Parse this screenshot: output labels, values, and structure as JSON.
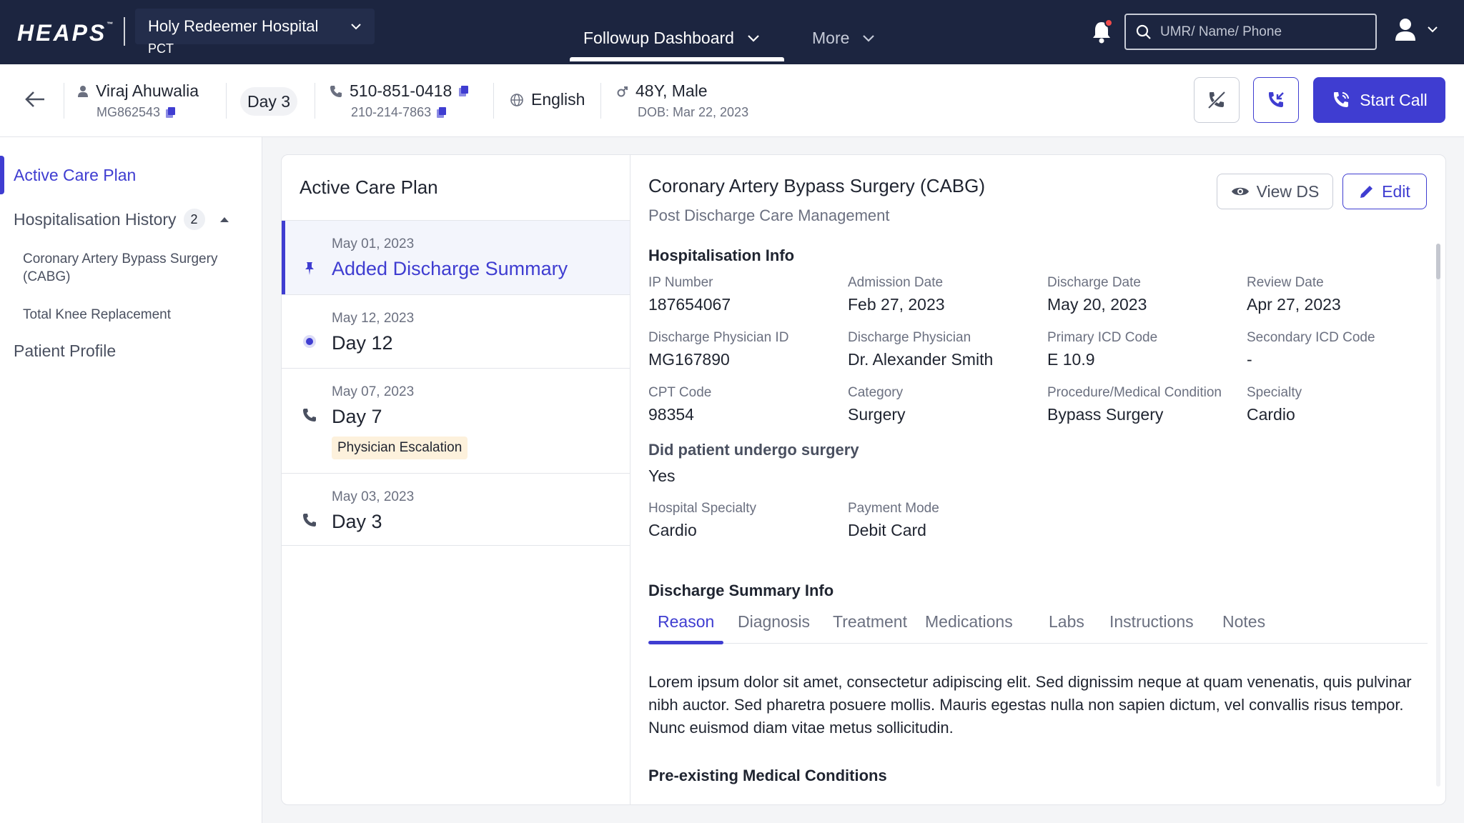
{
  "app": {
    "logo": "HEAPS",
    "logo_tm": "™"
  },
  "header": {
    "hospital_name": "Holy Redeemer Hospital",
    "hospital_sub": "PCT",
    "nav_tabs": [
      {
        "label": "Followup Dashboard",
        "active": true
      },
      {
        "label": "More",
        "active": false
      }
    ],
    "search_placeholder": "UMR/ Name/ Phone"
  },
  "patient": {
    "name": "Viraj Ahuwalia",
    "mrn": "MG862543",
    "day": "Day 3",
    "phone_primary": "510-851-0418",
    "phone_secondary": "210-214-7863",
    "language": "English",
    "age_gender": "48Y, Male",
    "dob": "DOB: Mar 22, 2023",
    "start_call_label": "Start Call"
  },
  "sidebar": {
    "active_care_plan": "Active Care Plan",
    "hospitalisation_history": "Hospitalisation History",
    "history_count": "2",
    "history_items": [
      "Coronary Artery Bypass Surgery (CABG)",
      "Total Knee Replacement"
    ],
    "patient_profile": "Patient Profile"
  },
  "timeline": {
    "title": "Active Care Plan",
    "items": [
      {
        "date": "May 01, 2023",
        "label": "Added Discharge Summary",
        "icon": "pin-icon"
      },
      {
        "date": "May 12, 2023",
        "label": "Day 12",
        "icon": "radio-dot-icon"
      },
      {
        "date": "May 07, 2023",
        "label": "Day 7",
        "icon": "phone-icon",
        "tag": "Physician Escalation"
      },
      {
        "date": "May 03, 2023",
        "label": "Day 3",
        "icon": "phone-icon"
      }
    ]
  },
  "detail": {
    "title": "Coronary Artery Bypass Surgery (CABG)",
    "subtitle": "Post Discharge Care Management",
    "view_ds_label": "View DS",
    "edit_label": "Edit",
    "hosp_info_title": "Hospitalisation Info",
    "fields": [
      {
        "label": "IP Number",
        "value": "187654067"
      },
      {
        "label": "Admission Date",
        "value": "Feb 27, 2023"
      },
      {
        "label": "Discharge Date",
        "value": "May 20, 2023"
      },
      {
        "label": "Review Date",
        "value": "Apr 27, 2023"
      },
      {
        "label": "Discharge Physician ID",
        "value": "MG167890"
      },
      {
        "label": "Discharge Physician",
        "value": "Dr. Alexander Smith"
      },
      {
        "label": "Primary ICD Code",
        "value": "E 10.9"
      },
      {
        "label": "Secondary ICD Code",
        "value": "-"
      },
      {
        "label": "CPT Code",
        "value": "98354"
      },
      {
        "label": "Category",
        "value": "Surgery"
      },
      {
        "label": "Procedure/Medical Condition",
        "value": "Bypass Surgery"
      },
      {
        "label": "Specialty",
        "value": "Cardio"
      }
    ],
    "surgery_question": "Did patient undergo surgery",
    "surgery_answer": "Yes",
    "fields2": [
      {
        "label": "Hospital Specialty",
        "value": "Cardio"
      },
      {
        "label": "Payment Mode",
        "value": "Debit Card"
      }
    ],
    "ds_info_title": "Discharge Summary Info",
    "tabs": [
      "Reason",
      "Diagnosis",
      "Treatment",
      "Medications",
      "Labs",
      "Instructions",
      "Notes"
    ],
    "reason_text": "Lorem ipsum dolor sit amet, consectetur adipiscing elit. Sed dignissim neque at quam venenatis, quis pulvinar nibh auctor. Sed pharetra posuere mollis. Mauris egestas nulla non sapien dictum, vel convallis risus tempor. Nunc euismod diam vitae metus sollicitudin.",
    "pre_existing_title": "Pre-existing Medical Conditions"
  },
  "colors": {
    "navy": "#1c2540",
    "accent": "#3f3dd1",
    "tag_bg": "#fdf1dc"
  }
}
